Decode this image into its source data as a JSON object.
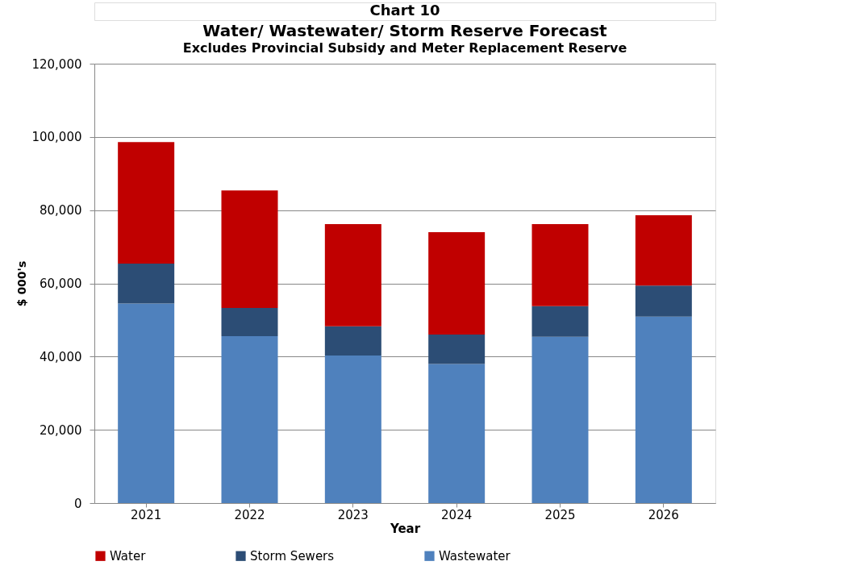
{
  "chart_data": {
    "type": "bar",
    "title": "Water/ Wastewater/ Storm Reserve Forecast",
    "subtitle": "Excludes Provincial Subsidy and Meter Replacement Reserve",
    "annotations": [
      "Chart 10"
    ],
    "xlabel": "Year",
    "ylabel": "$ 000's",
    "categories": [
      "2021",
      "2022",
      "2023",
      "2024",
      "2025",
      "2026"
    ],
    "stacked": true,
    "series": [
      {
        "name": "Wastewater",
        "color": "#4f81bd",
        "values": [
          54500,
          45600,
          40300,
          38000,
          45400,
          50900
        ]
      },
      {
        "name": "Storm Sewers",
        "color": "#2c4d75",
        "values": [
          10900,
          7700,
          8000,
          8000,
          8400,
          8500
        ]
      },
      {
        "name": "Water",
        "color": "#c00000",
        "values": [
          33200,
          32100,
          27900,
          28000,
          22400,
          19200
        ]
      }
    ],
    "ylim": [
      0,
      120000
    ],
    "yticks": [
      0,
      {
        "value": 20000,
        "label": "20,000"
      },
      {
        "value": 40000,
        "label": "40,000"
      },
      {
        "value": 60000,
        "label": "60,000"
      },
      {
        "value": 80000,
        "label": "80,000"
      },
      {
        "value": 100000,
        "label": "100,000"
      },
      {
        "value": 120000,
        "label": "120,000"
      }
    ],
    "grid": "y",
    "legend": "bottom"
  }
}
